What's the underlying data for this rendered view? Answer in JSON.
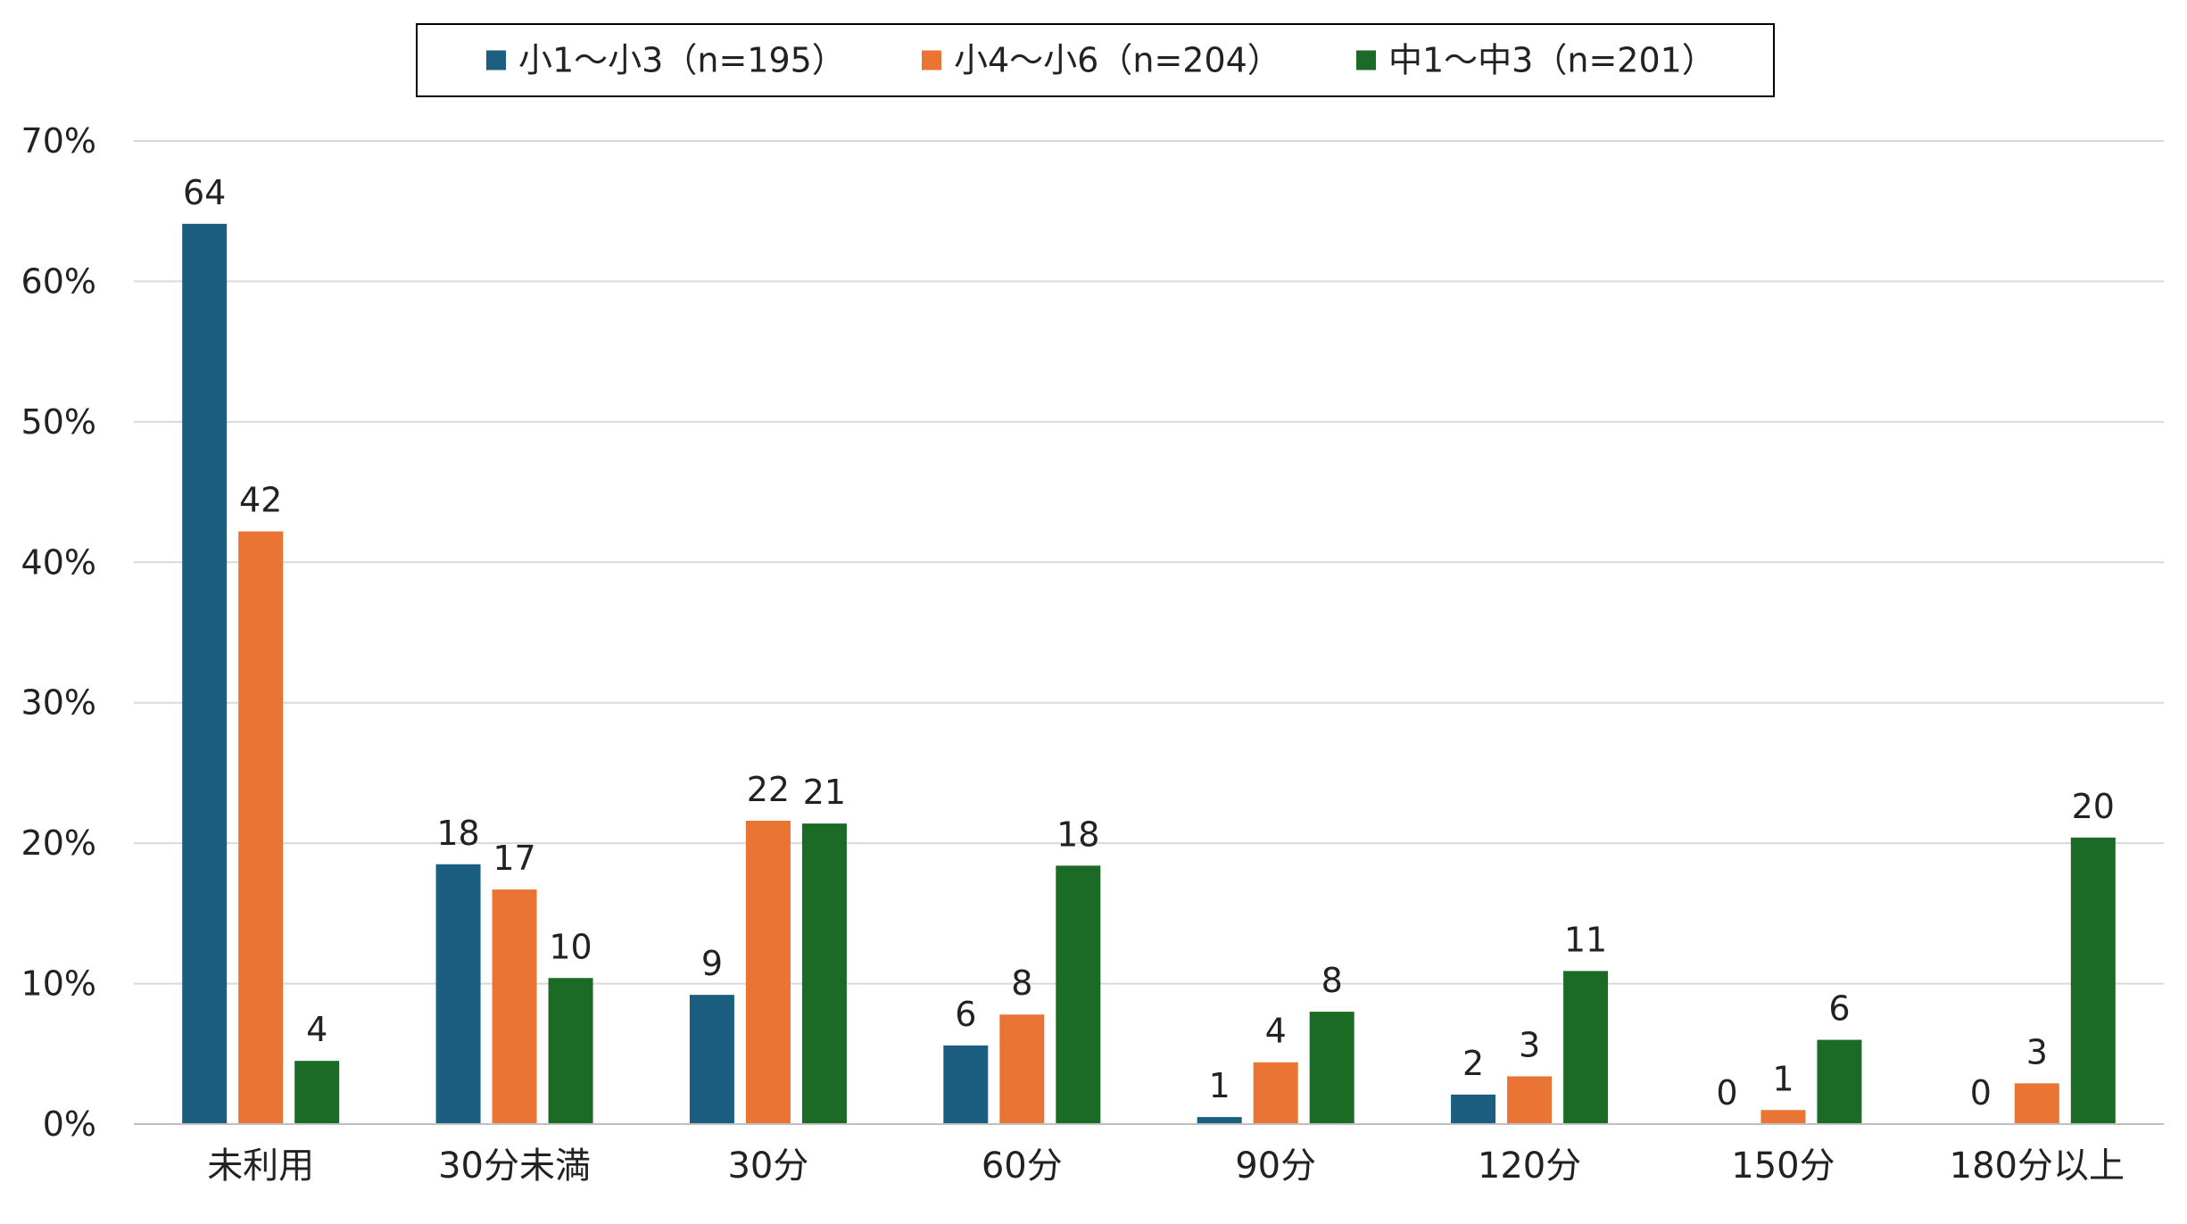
{
  "chart_data": {
    "type": "bar",
    "categories": [
      "未利用",
      "30分未満",
      "30分",
      "60分",
      "90分",
      "120分",
      "150分",
      "180分以上"
    ],
    "series": [
      {
        "name": "小1～小3（n=195）",
        "color": "#1b5e80",
        "values": [
          64.1,
          18.5,
          9.2,
          5.6,
          0.5,
          2.1,
          0,
          0
        ],
        "labels": [
          "64",
          "18",
          "9",
          "6",
          "1",
          "2",
          "0",
          "0"
        ]
      },
      {
        "name": "小4～小6（n=204）",
        "color": "#e97434",
        "values": [
          42.2,
          16.7,
          21.6,
          7.8,
          4.4,
          3.4,
          1.0,
          2.9
        ],
        "labels": [
          "42",
          "17",
          "22",
          "8",
          "4",
          "3",
          "1",
          "3"
        ]
      },
      {
        "name": "中1～中3（n=201）",
        "color": "#1b6b27",
        "values": [
          4.5,
          10.4,
          21.4,
          18.4,
          8.0,
          10.9,
          6.0,
          20.4
        ],
        "labels": [
          "4",
          "10",
          "21",
          "18",
          "8",
          "11",
          "6",
          "20"
        ]
      }
    ],
    "y_ticks": [
      "0%",
      "10%",
      "20%",
      "30%",
      "40%",
      "50%",
      "60%",
      "70%"
    ],
    "ylim": [
      0,
      70
    ],
    "grid": true,
    "legend_position": "top-center",
    "title": "",
    "xlabel": "",
    "ylabel": ""
  }
}
